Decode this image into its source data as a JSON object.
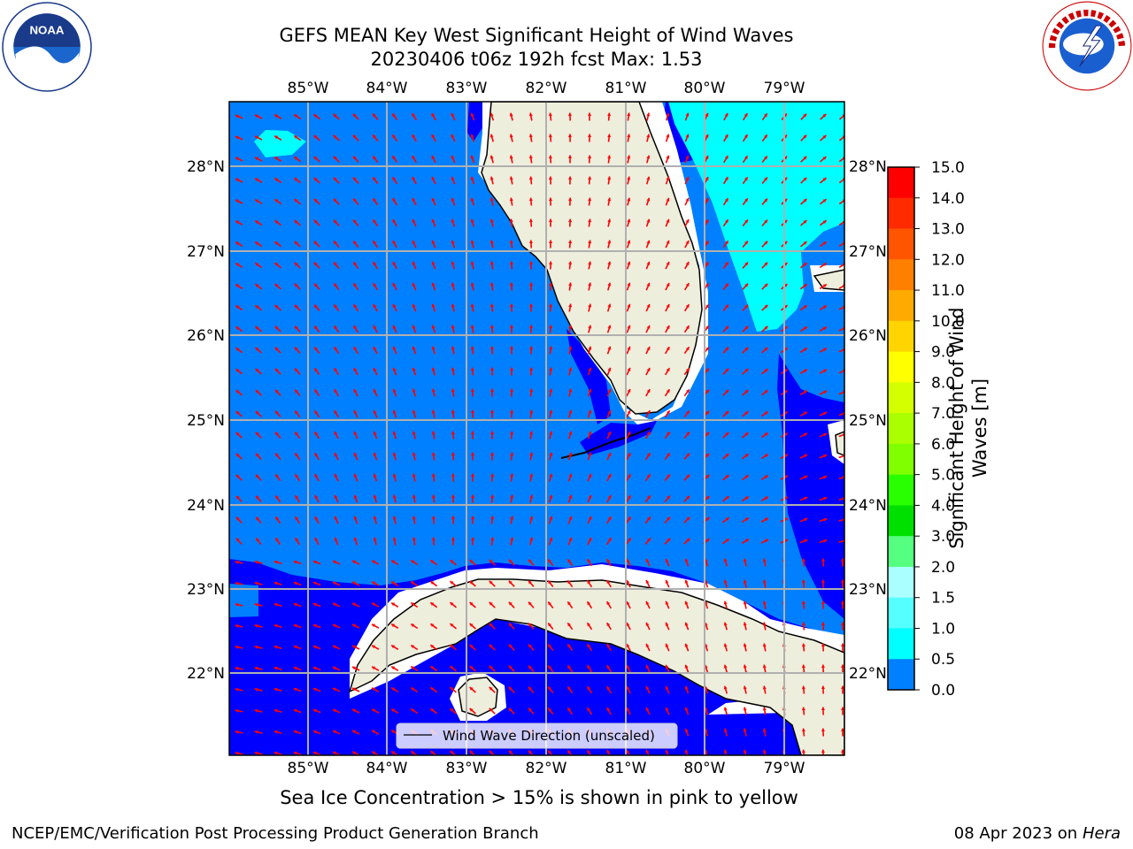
{
  "title": {
    "line1": "GEFS MEAN Key West Significant Height of Wind Waves",
    "line2": "20230406 t06z 192h fcst   Max: 1.53"
  },
  "map": {
    "lon_labels": [
      "85°W",
      "84°W",
      "83°W",
      "82°W",
      "81°W",
      "80°W",
      "79°W"
    ],
    "lat_labels": [
      "28°N",
      "27°N",
      "26°N",
      "25°N",
      "24°N",
      "23°N",
      "22°N"
    ],
    "legend_label": "Wind Wave Direction (unscaled)",
    "colors": {
      "land": "#eeeedd",
      "band_0_0_5": "#0000ff",
      "band_0_5_1_0": "#0080ff",
      "band_1_0_1_5": "#00ffff",
      "arrow": "#ff0000",
      "grid": "#b0b0b0"
    }
  },
  "colorbar": {
    "title_line1": "Significant Height of Wind",
    "title_line2": "Waves [m]",
    "ticks": [
      "15.0",
      "14.0",
      "13.0",
      "12.0",
      "11.0",
      "10.0",
      "9.0",
      "8.0",
      "7.0",
      "6.0",
      "5.0",
      "4.0",
      "3.0",
      "2.0",
      "1.5",
      "1.0",
      "0.5",
      "0.0"
    ],
    "colors": [
      "#ff0000",
      "#ff2a00",
      "#ff5500",
      "#ff8000",
      "#ffaa00",
      "#ffd400",
      "#ffff00",
      "#d4ff00",
      "#aaff00",
      "#80ff00",
      "#2aff00",
      "#00e000",
      "#55ff80",
      "#aaffff",
      "#55ffff",
      "#00ffff",
      "#0080ff",
      "#0000ff"
    ]
  },
  "sea_ice_note": "Sea Ice Concentration > 15% is shown in pink to yellow",
  "footer": {
    "left": "NCEP/EMC/Verification Post Processing Product Generation Branch",
    "right_date": "08 Apr 2023 on ",
    "right_host": "Hera"
  }
}
